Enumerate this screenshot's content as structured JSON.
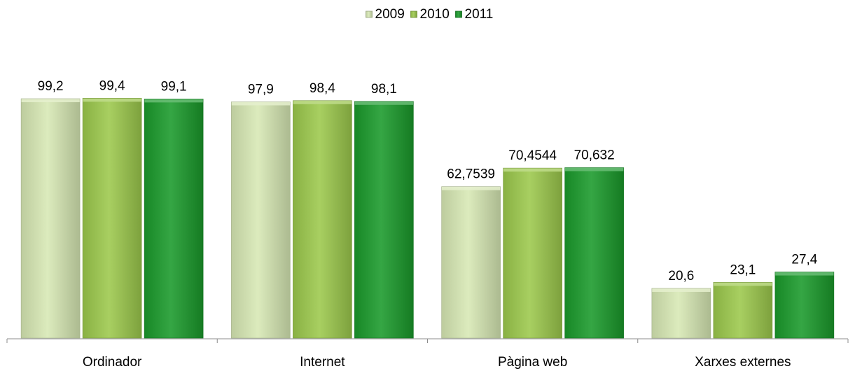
{
  "chart_data": {
    "type": "bar",
    "categories": [
      "Ordinador",
      "Internet",
      "Pàgina web",
      "Xarxes externes"
    ],
    "series": [
      {
        "name": "2009",
        "color": "#d7e8b4",
        "values": [
          99.2,
          97.9,
          62.7539,
          20.6
        ],
        "labels": [
          "99,2",
          "97,9",
          "62,7539",
          "20,6"
        ]
      },
      {
        "name": "2010",
        "color": "#9cc94c",
        "values": [
          99.4,
          98.4,
          70.4544,
          23.1
        ],
        "labels": [
          "99,4",
          "98,4",
          "70,4544",
          "23,1"
        ]
      },
      {
        "name": "2011",
        "color": "#1a9a2b",
        "values": [
          99.1,
          98.1,
          70.632,
          27.4
        ],
        "labels": [
          "99,1",
          "98,1",
          "70,632",
          "27,4"
        ]
      }
    ],
    "ylim": [
      0,
      100
    ],
    "legend_position": "top-center",
    "grid": false
  }
}
